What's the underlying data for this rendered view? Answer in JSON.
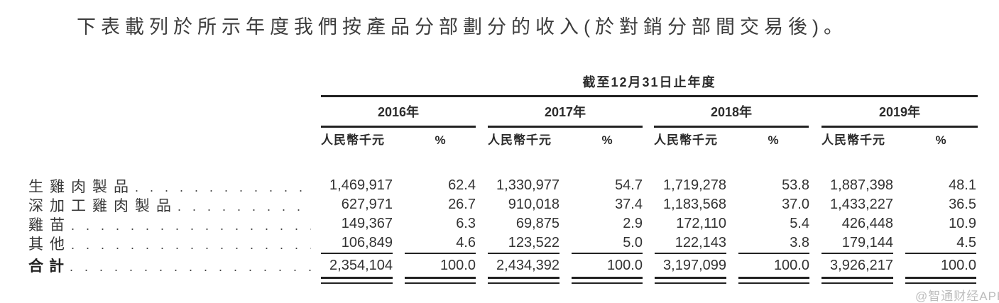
{
  "title": "下表載列於所示年度我們按產品分部劃分的收入(於對銷分部間交易後)。",
  "table": {
    "period_header": "截至12月31日止年度",
    "years": [
      "2016年",
      "2017年",
      "2018年",
      "2019年"
    ],
    "unit_label": "人民幣千元",
    "percent_label": "%",
    "rows": [
      {
        "label": "生雞肉製品",
        "cells": [
          "1,469,917",
          "62.4",
          "1,330,977",
          "54.7",
          "1,719,278",
          "53.8",
          "1,887,398",
          "48.1"
        ]
      },
      {
        "label": "深加工雞肉製品",
        "cells": [
          "627,971",
          "26.7",
          "910,018",
          "37.4",
          "1,183,568",
          "37.0",
          "1,433,227",
          "36.5"
        ]
      },
      {
        "label": "雞苗",
        "cells": [
          "149,367",
          "6.3",
          "69,875",
          "2.9",
          "172,110",
          "5.4",
          "426,448",
          "10.9"
        ]
      },
      {
        "label": "其他",
        "cells": [
          "106,849",
          "4.6",
          "123,522",
          "5.0",
          "122,143",
          "3.8",
          "179,144",
          "4.5"
        ]
      }
    ],
    "total": {
      "label": "合計",
      "cells": [
        "2,354,104",
        "100.0",
        "2,434,392",
        "100.0",
        "3,197,099",
        "100.0",
        "3,926,217",
        "100.0"
      ]
    }
  },
  "watermark": "@智通财经APP",
  "colors": {
    "text": "#333333",
    "rule": "#222222",
    "watermark": "#bcbcbc"
  }
}
